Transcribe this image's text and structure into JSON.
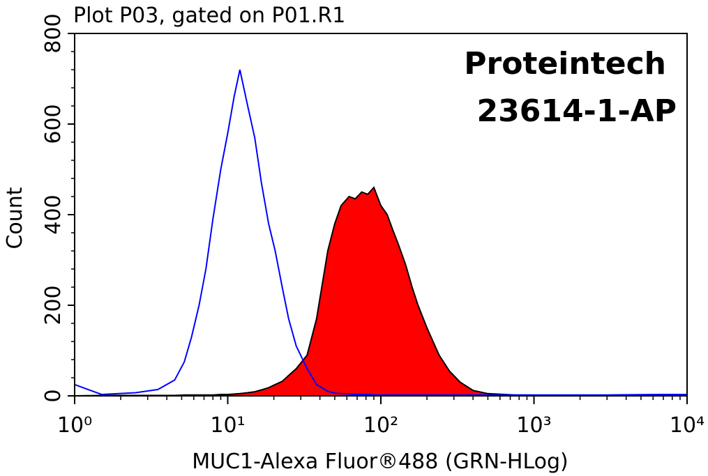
{
  "chart_data": {
    "type": "histogram-overlay",
    "title": "Plot P03, gated on P01.R1",
    "xlabel": "MUC1-Alexa Fluor®488 (GRN-HLog)",
    "ylabel": "Count",
    "annotations": [
      "Proteintech",
      "23614-1-AP"
    ],
    "xscale": "log",
    "xlim": [
      1,
      10000
    ],
    "xticks": [
      {
        "value": 1,
        "label": "10⁰"
      },
      {
        "value": 10,
        "label": "10¹"
      },
      {
        "value": 100,
        "label": "10²"
      },
      {
        "value": 1000,
        "label": "10³"
      },
      {
        "value": 10000,
        "label": "10⁴"
      }
    ],
    "ylim": [
      0,
      800
    ],
    "yticks": [
      0,
      200,
      400,
      600,
      800
    ],
    "x": [
      1,
      1.5,
      2.5,
      3.5,
      4.5,
      5.2,
      5.8,
      6.5,
      7.2,
      8,
      9,
      10,
      11,
      12,
      13.5,
      15,
      16.6,
      18.5,
      20.4,
      22.7,
      25,
      28,
      33,
      38,
      45,
      50,
      55,
      62,
      68,
      75,
      82,
      90,
      100,
      110,
      120,
      130,
      145,
      160,
      175,
      200,
      240,
      280,
      330,
      400,
      500,
      750,
      1500,
      3000,
      7000,
      10000
    ],
    "series": [
      {
        "color": "#ff0000",
        "edge": "#000000",
        "fill": true,
        "values": [
          0,
          1,
          1,
          1,
          1,
          2,
          2,
          2,
          2,
          2,
          3,
          3,
          4,
          5,
          7,
          9,
          13,
          18,
          25,
          32,
          45,
          60,
          90,
          170,
          320,
          380,
          420,
          440,
          435,
          450,
          445,
          460,
          420,
          400,
          365,
          335,
          290,
          240,
          200,
          150,
          90,
          55,
          30,
          12,
          5,
          2,
          1,
          1,
          1,
          1
        ]
      },
      {
        "color": "#0000ff",
        "fill": false,
        "values": [
          25,
          3,
          7,
          14,
          35,
          75,
          130,
          200,
          280,
          390,
          500,
          580,
          660,
          720,
          640,
          570,
          470,
          380,
          320,
          240,
          170,
          110,
          60,
          25,
          10,
          6,
          5,
          4,
          3,
          3,
          3,
          2,
          2,
          2,
          2,
          2,
          2,
          2,
          2,
          2,
          2,
          2,
          2,
          2,
          2,
          2,
          2,
          2,
          3,
          3
        ]
      }
    ]
  }
}
